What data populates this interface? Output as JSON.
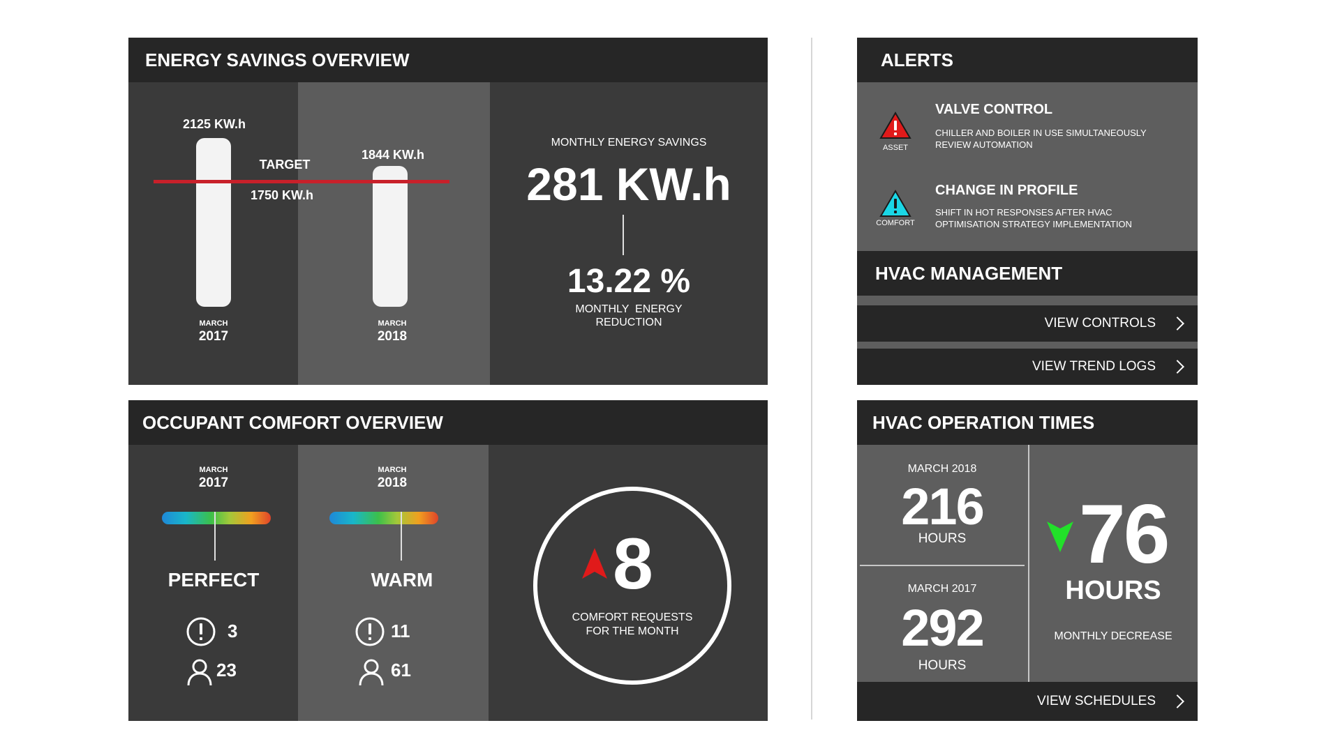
{
  "energy": {
    "title": "ENERGY SAVINGS OVERVIEW",
    "bar2017": {
      "value_label": "2125 KW.h",
      "month": "MARCH",
      "year": "2017"
    },
    "bar2018": {
      "value_label": "1844 KW.h",
      "month": "MARCH",
      "year": "2018"
    },
    "target_label": "TARGET",
    "target_value": "1750 KW.h",
    "monthly_savings_label": "MONTHLY ENERGY SAVINGS",
    "monthly_savings_value": "281 KW.h",
    "reduction_value": "13.22 %",
    "reduction_label_line1": "MONTHLY  ENERGY",
    "reduction_label_line2": "REDUCTION"
  },
  "comfort": {
    "title": "OCCUPANT COMFORT OVERVIEW",
    "col2017": {
      "month": "MARCH",
      "year": "2017",
      "status": "PERFECT",
      "alerts": "3",
      "people": "23"
    },
    "col2018": {
      "month": "MARCH",
      "year": "2018",
      "status": "WARM",
      "alerts": "11",
      "people": "61"
    },
    "requests_value": "8",
    "requests_label_line1": "COMFORT REQUESTS",
    "requests_label_line2": "FOR THE MONTH"
  },
  "alerts": {
    "title": "ALERTS",
    "items": [
      {
        "icon_caption": "ASSET",
        "title": "VALVE CONTROL",
        "line1": "CHILLER AND BOILER IN USE SIMULTANEOUSLY",
        "line2": "REVIEW AUTOMATION",
        "icon_color": "#e01a1a"
      },
      {
        "icon_caption": "COMFORT",
        "title": "CHANGE IN PROFILE",
        "line1": "SHIFT IN HOT RESPONSES AFTER HVAC",
        "line2": "OPTIMISATION STRATEGY IMPLEMENTATION",
        "icon_color": "#1ad7e6"
      }
    ]
  },
  "hvac": {
    "title": "HVAC MANAGEMENT",
    "view_controls": "VIEW CONTROLS",
    "view_trend_logs": "VIEW TREND LOGS"
  },
  "ops": {
    "title": "HVAC OPERATION TIMES",
    "current": {
      "label": "MARCH 2018",
      "value": "216",
      "unit": "HOURS"
    },
    "previous": {
      "label": "MARCH 2017",
      "value": "292",
      "unit": "HOURS"
    },
    "decrease_value": "76",
    "decrease_unit": "HOURS",
    "decrease_label": "MONTHLY DECREASE",
    "view_schedules": "VIEW SCHEDULES"
  }
}
